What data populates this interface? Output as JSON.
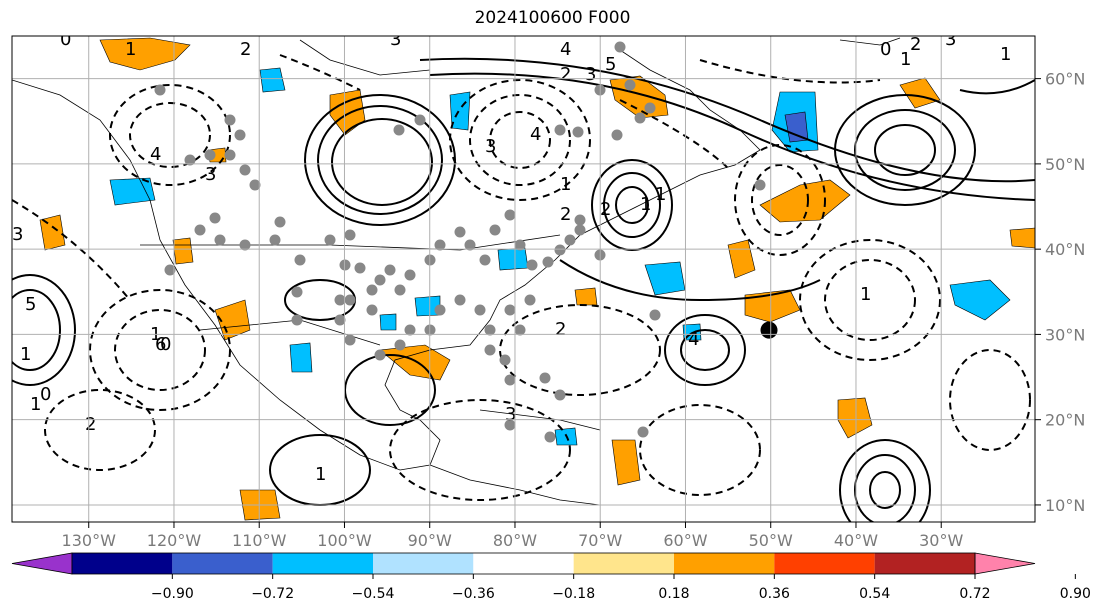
{
  "title": "2024100600 F000",
  "map": {
    "lat_labels": [
      "60°N",
      "50°N",
      "40°N",
      "30°N",
      "20°N",
      "10°N"
    ],
    "lat_values": [
      60,
      50,
      40,
      30,
      20,
      10
    ],
    "lon_labels": [
      "130°W",
      "120°W",
      "110°W",
      "100°W",
      "90°W",
      "80°W",
      "70°W",
      "60°W",
      "50°W",
      "40°W",
      "30°W"
    ],
    "lon_values": [
      -130,
      -120,
      -110,
      -100,
      -90,
      -80,
      -70,
      -60,
      -50,
      -40,
      -30
    ],
    "extent": {
      "lon_min": -139,
      "lon_max": -19,
      "lat_min": 8,
      "lat_max": 65
    },
    "marked_point": {
      "lon": -50.2,
      "lat": 30.5
    },
    "contour_labels": [
      "0",
      "1",
      "2",
      "3",
      "4",
      "5",
      "3",
      "2",
      "1",
      "0",
      "1",
      "2",
      "3",
      "4",
      "3",
      "1",
      "2",
      "1",
      "1",
      "2",
      "3",
      "4",
      "5",
      "3",
      "1",
      "0",
      "1",
      "2",
      "1",
      "0",
      "1",
      "3",
      "2",
      "4",
      "1",
      "6"
    ]
  },
  "colorbar": {
    "tick_labels": [
      "−0.90",
      "−0.72",
      "−0.54",
      "−0.36",
      "−0.18",
      "0.18",
      "0.36",
      "0.54",
      "0.72",
      "0.90"
    ],
    "bins": [
      {
        "color": "#9932cc"
      },
      {
        "color": "#00008b"
      },
      {
        "color": "#3a5fcd"
      },
      {
        "color": "#00bfff"
      },
      {
        "color": "#b0e2ff"
      },
      {
        "color": "#ffffff"
      },
      {
        "color": "#ffe58c"
      },
      {
        "color": "#ffa000"
      },
      {
        "color": "#ff4000"
      },
      {
        "color": "#b22222"
      },
      {
        "color": "#ff82ab"
      }
    ]
  }
}
